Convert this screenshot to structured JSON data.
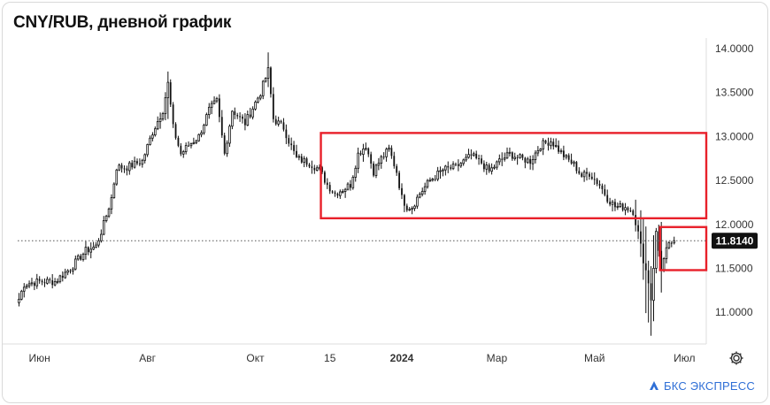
{
  "title": "CNY/RUB, дневной график",
  "brand": {
    "name": "БКС ЭКСПРЕСС",
    "color": "#2f6fd6"
  },
  "settings_icon": "gear-icon",
  "colors": {
    "candle": "#111111",
    "box": "#e8202a",
    "badge_bg": "#111111",
    "grid": "#e6e6e6"
  },
  "current_price": {
    "value": 11.814,
    "label": "11.8140"
  },
  "chart_data": {
    "type": "candlestick",
    "y_ticks": [
      "14.0000",
      "13.5000",
      "13.0000",
      "12.5000",
      "12.0000",
      "11.5000",
      "11.0000"
    ],
    "y_tick_values": [
      14.0,
      13.5,
      13.0,
      12.5,
      12.0,
      11.5,
      11.0
    ],
    "ylim": [
      10.64,
      14.12
    ],
    "x_ticks": [
      "Июн",
      "Авг",
      "Окт",
      "15",
      "2024",
      "Мар",
      "Май",
      "Июл"
    ],
    "x_tick_index": [
      8,
      50,
      92,
      121,
      149,
      186,
      224,
      259
    ],
    "bar_count": 268,
    "anchors": [
      [
        0,
        11.15
      ],
      [
        2,
        11.32
      ],
      [
        8,
        11.35
      ],
      [
        14,
        11.35
      ],
      [
        20,
        11.5
      ],
      [
        26,
        11.7
      ],
      [
        30,
        11.75
      ],
      [
        33,
        12.0
      ],
      [
        36,
        12.3
      ],
      [
        38,
        12.65
      ],
      [
        42,
        12.65
      ],
      [
        48,
        12.72
      ],
      [
        52,
        13.05
      ],
      [
        56,
        13.3
      ],
      [
        58,
        13.6
      ],
      [
        60,
        13.1
      ],
      [
        63,
        12.8
      ],
      [
        66,
        12.9
      ],
      [
        70,
        13.0
      ],
      [
        74,
        13.3
      ],
      [
        77,
        13.4
      ],
      [
        80,
        12.8
      ],
      [
        83,
        13.3
      ],
      [
        88,
        13.15
      ],
      [
        94,
        13.5
      ],
      [
        97,
        13.75
      ],
      [
        99,
        13.2
      ],
      [
        103,
        13.1
      ],
      [
        105,
        12.95
      ],
      [
        108,
        12.75
      ],
      [
        113,
        12.7
      ],
      [
        117,
        12.62
      ],
      [
        120,
        12.45
      ],
      [
        123,
        12.35
      ],
      [
        126,
        12.4
      ],
      [
        129,
        12.45
      ],
      [
        132,
        12.8
      ],
      [
        135,
        12.9
      ],
      [
        138,
        12.6
      ],
      [
        141,
        12.75
      ],
      [
        144,
        12.85
      ],
      [
        147,
        12.6
      ],
      [
        149,
        12.3
      ],
      [
        151,
        12.2
      ],
      [
        153,
        12.2
      ],
      [
        156,
        12.35
      ],
      [
        160,
        12.5
      ],
      [
        165,
        12.62
      ],
      [
        170,
        12.65
      ],
      [
        176,
        12.78
      ],
      [
        180,
        12.7
      ],
      [
        183,
        12.6
      ],
      [
        187,
        12.72
      ],
      [
        191,
        12.8
      ],
      [
        195,
        12.75
      ],
      [
        199,
        12.72
      ],
      [
        203,
        12.9
      ],
      [
        207,
        12.95
      ],
      [
        210,
        12.85
      ],
      [
        213,
        12.75
      ],
      [
        216,
        12.68
      ],
      [
        219,
        12.55
      ],
      [
        222,
        12.58
      ],
      [
        226,
        12.45
      ],
      [
        229,
        12.3
      ],
      [
        232,
        12.2
      ],
      [
        236,
        12.2
      ],
      [
        239,
        12.15
      ],
      [
        241,
        11.9
      ],
      [
        243,
        11.6
      ],
      [
        245,
        11.35
      ],
      [
        246,
        11.15
      ],
      [
        248,
        11.9
      ],
      [
        250,
        11.5
      ],
      [
        252,
        11.7
      ],
      [
        254,
        11.8
      ],
      [
        255,
        11.814
      ]
    ],
    "highlight_boxes": [
      {
        "y_top": 13.04,
        "y_bottom": 12.07,
        "x_start_index": 118,
        "x_end_index": 268
      },
      {
        "y_top": 11.97,
        "y_bottom": 11.48,
        "x_start_index": 250,
        "x_end_index": 268
      }
    ]
  }
}
